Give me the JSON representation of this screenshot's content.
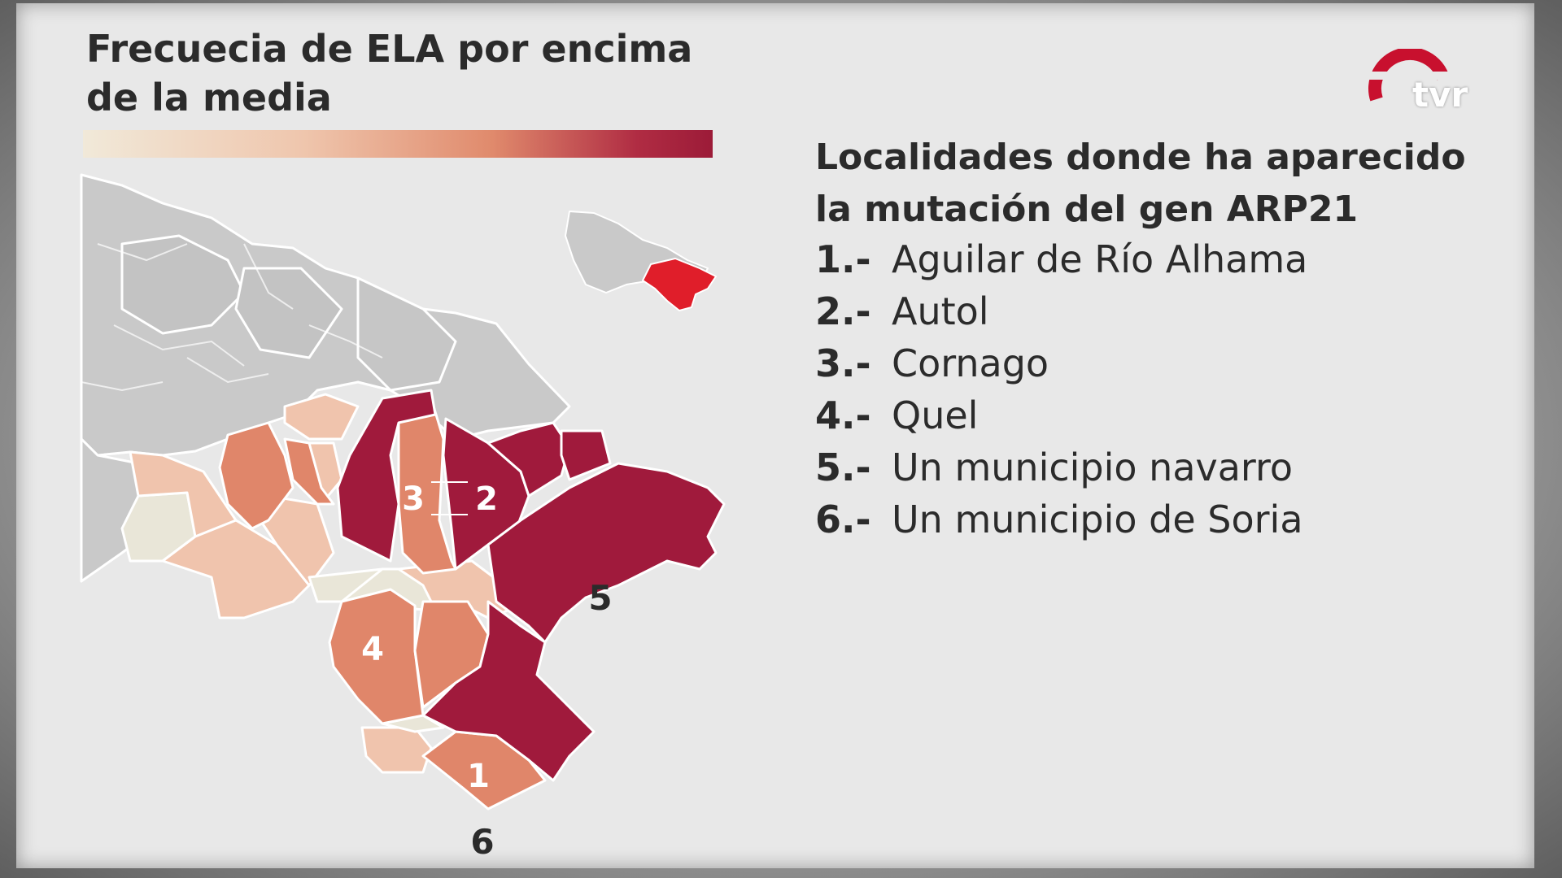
{
  "title_lines": [
    "Frecuecia de ELA por encima",
    "de la media"
  ],
  "list": {
    "title_lines": [
      "Localidades donde ha aparecido",
      "la mutación del gen ARP21"
    ],
    "items": [
      {
        "num": "1.-",
        "name": "Aguilar de Río Alhama"
      },
      {
        "num": "2.-",
        "name": "Autol"
      },
      {
        "num": "3.-",
        "name": "Cornago"
      },
      {
        "num": "4.-",
        "name": "Quel"
      },
      {
        "num": "5.-",
        "name": "Un municipio navarro"
      },
      {
        "num": "6.-",
        "name": "Un municipio de Soria"
      }
    ]
  },
  "map_labels": {
    "l1": "1",
    "l2": "2",
    "l3": "3",
    "l4": "4",
    "l5": "5",
    "l6": "6"
  },
  "logo": {
    "text": "tvr"
  },
  "colors": {
    "gray": "#c8c8c8",
    "light": "#f0c4ad",
    "pale": "#e9e6d8",
    "medium": "#e0866a",
    "dark": "#a01a3c",
    "inset_highlight": "#e01e2a"
  }
}
